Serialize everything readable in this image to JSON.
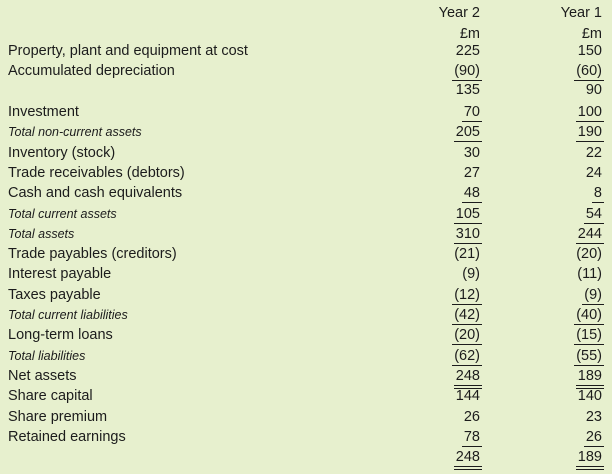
{
  "header": {
    "year2": "Year 2",
    "year1": "Year 1",
    "unit2": "£m",
    "unit1": "£m"
  },
  "rows": [
    {
      "label": "Property, plant and equipment at cost",
      "y2": "225",
      "y1": "150",
      "italic": false
    },
    {
      "label": "Accumulated depreciation",
      "y2": "(90)",
      "y1": "(60)",
      "italic": false
    },
    {
      "label": "",
      "y2": "135",
      "y1": "90",
      "italic": false
    },
    {
      "label": "Investment",
      "y2": "70",
      "y1": "100",
      "italic": false
    },
    {
      "label": "Total non-current assets",
      "y2": "205",
      "y1": "190",
      "italic": true
    },
    {
      "label": "Inventory (stock)",
      "y2": "30",
      "y1": "22",
      "italic": false
    },
    {
      "label": "Trade receivables (debtors)",
      "y2": "27",
      "y1": "24",
      "italic": false
    },
    {
      "label": "Cash and cash equivalents",
      "y2": "48",
      "y1": "8",
      "italic": false
    },
    {
      "label": "Total current assets",
      "y2": "105",
      "y1": "54",
      "italic": true
    },
    {
      "label": "Total assets",
      "y2": "310",
      "y1": "244",
      "italic": true
    },
    {
      "label": "Trade payables (creditors)",
      "y2": "(21)",
      "y1": "(20)",
      "italic": false
    },
    {
      "label": "Interest payable",
      "y2": "(9)",
      "y1": "(11)",
      "italic": false
    },
    {
      "label": "Taxes payable",
      "y2": "(12)",
      "y1": "(9)",
      "italic": false
    },
    {
      "label": "Total current liabilities",
      "y2": "(42)",
      "y1": "(40)",
      "italic": true
    },
    {
      "label": "Long-term loans",
      "y2": "(20)",
      "y1": "(15)",
      "italic": false
    },
    {
      "label": "Total liabilities",
      "y2": "(62)",
      "y1": "(55)",
      "italic": true
    },
    {
      "label": "Net assets",
      "y2": "248",
      "y1": "189",
      "italic": false
    },
    {
      "label": "Share capital",
      "y2": "144",
      "y1": "140",
      "italic": false
    },
    {
      "label": "Share premium",
      "y2": "26",
      "y1": "23",
      "italic": false
    },
    {
      "label": "Retained earnings",
      "y2": "78",
      "y1": "26",
      "italic": false
    },
    {
      "label": "",
      "y2": "248",
      "y1": "189",
      "italic": false
    }
  ]
}
